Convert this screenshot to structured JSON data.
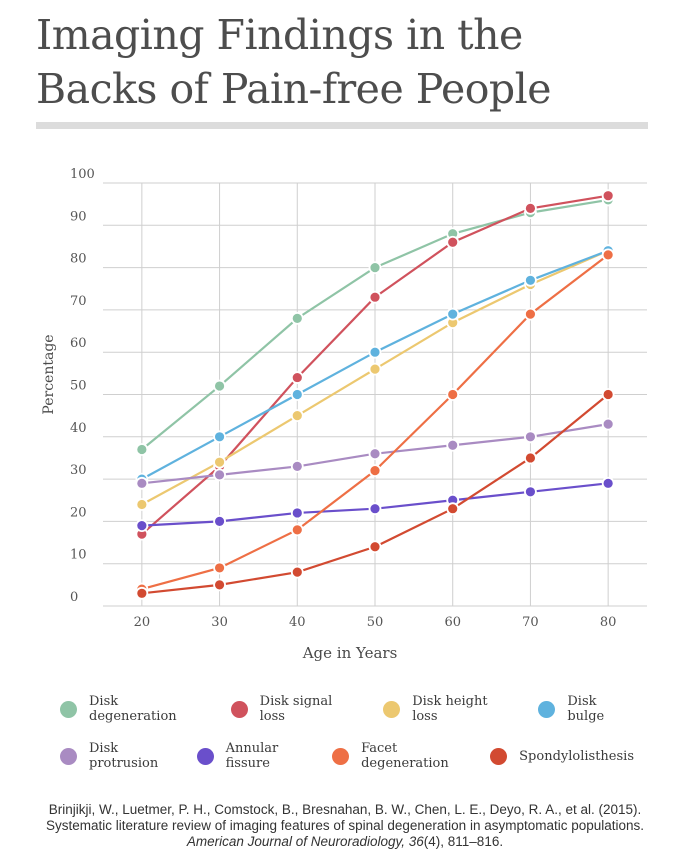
{
  "title": "Imaging Findings in the Backs of Pain-free People",
  "citation": {
    "authors": "Brinjikji, W., Luetmer, P. H., Comstock, B., Bresnahan, B. W., Chen, L. E., Deyo, R. A., et al. (2015). Systematic literature review of imaging features of spinal degeneration in asymptomatic populations.",
    "journal": "American Journal of Neuroradiology, 36",
    "issue_pages": "(4), 811–816."
  },
  "chart_data": {
    "type": "line",
    "title": "Imaging Findings in the Backs of Pain-free People",
    "xlabel": "Age in Years",
    "ylabel": "Percentage",
    "x": [
      20,
      30,
      40,
      50,
      60,
      70,
      80
    ],
    "xlim": [
      15,
      85
    ],
    "ylim": [
      0,
      100
    ],
    "yticks": [
      0,
      10,
      20,
      30,
      40,
      50,
      60,
      70,
      80,
      90,
      100
    ],
    "grid": true,
    "legend_position": "bottom",
    "series": [
      {
        "name": "Disk degeneration",
        "color": "#8fc4a6",
        "values": [
          37,
          52,
          68,
          80,
          88,
          93,
          96
        ]
      },
      {
        "name": "Disk signal loss",
        "color": "#d0525d",
        "values": [
          17,
          33,
          54,
          73,
          86,
          94,
          97
        ]
      },
      {
        "name": "Disk height loss",
        "color": "#ecc870",
        "values": [
          24,
          34,
          45,
          56,
          67,
          76,
          84
        ]
      },
      {
        "name": "Disk bulge",
        "color": "#5fb2de",
        "values": [
          30,
          40,
          50,
          60,
          69,
          77,
          84
        ]
      },
      {
        "name": "Disk protrusion",
        "color": "#a98bc2",
        "values": [
          29,
          31,
          33,
          36,
          38,
          40,
          43
        ]
      },
      {
        "name": "Annular fissure",
        "color": "#6a4fcb",
        "values": [
          19,
          20,
          22,
          23,
          25,
          27,
          29
        ]
      },
      {
        "name": "Facet degeneration",
        "color": "#ee6f45",
        "values": [
          4,
          9,
          18,
          32,
          50,
          69,
          83
        ]
      },
      {
        "name": "Spondylolisthesis",
        "color": "#d24a31",
        "values": [
          3,
          5,
          8,
          14,
          23,
          35,
          50
        ]
      }
    ]
  }
}
